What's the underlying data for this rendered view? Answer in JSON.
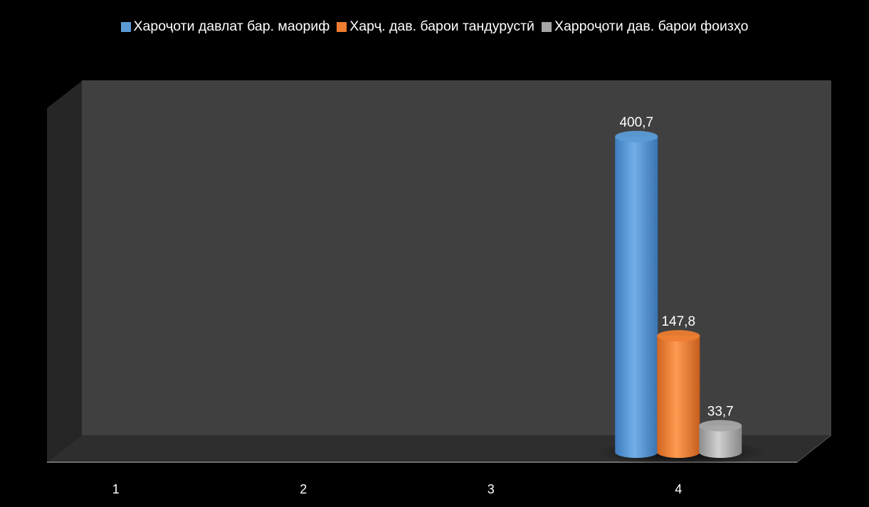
{
  "chart_data": {
    "type": "bar",
    "categories": [
      "1",
      "2",
      "3",
      "4"
    ],
    "series": [
      {
        "name": "Хароҷоти давлат бар. маориф",
        "color": "#5B9BD5",
        "values": [
          null,
          null,
          null,
          400.7
        ],
        "labels": [
          "",
          "",
          "",
          "400,7"
        ]
      },
      {
        "name": "Харҷ. дав. барои тандурустӣ",
        "color": "#ED7D31",
        "values": [
          null,
          null,
          null,
          147.8
        ],
        "labels": [
          "",
          "",
          "",
          "147,8"
        ]
      },
      {
        "name": "Харроҷоти дав. барои фоизҳо",
        "color": "#A5A5A5",
        "values": [
          null,
          null,
          null,
          33.7
        ],
        "labels": [
          "",
          "",
          "",
          "33,7"
        ]
      }
    ],
    "ylim": [
      0,
      450
    ],
    "legend_position": "top",
    "grid": false,
    "style": "3d-cylinder"
  }
}
